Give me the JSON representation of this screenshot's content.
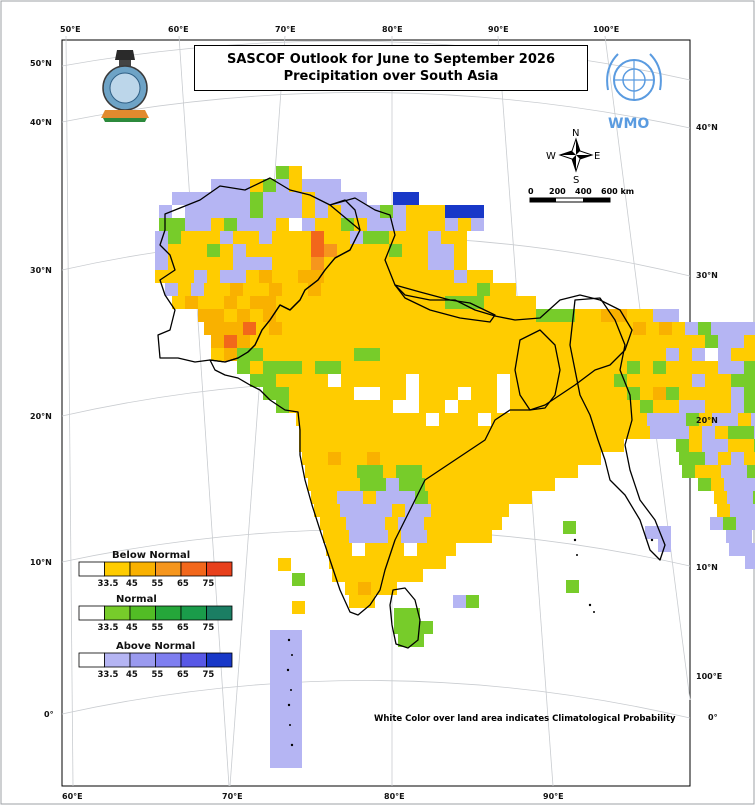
{
  "title": {
    "line1": "SASCOF Outlook for June to September 2026",
    "line2": "Precipitation over South Asia"
  },
  "logos": {
    "left": "india-emblem-logo",
    "right": "wmo-logo",
    "wmo_text": "WMO"
  },
  "footnote": "White Color over land area indicates Climatological Probability",
  "axes": {
    "top": [
      "50°E",
      "60°E",
      "70°E",
      "80°E",
      "90°E",
      "100°E"
    ],
    "bottom": [
      "60°E",
      "70°E",
      "80°E",
      "90°E"
    ],
    "left": [
      "50°N",
      "40°N",
      "30°N",
      "20°N",
      "10°N",
      "0°"
    ],
    "right": [
      "40°N",
      "30°N",
      "20°N",
      "10°N",
      "100°E",
      "0°"
    ]
  },
  "compass": {
    "n": "N",
    "s": "S",
    "e": "E",
    "w": "W"
  },
  "scale_bar": {
    "labels": [
      "0",
      "200",
      "400",
      "600 km"
    ]
  },
  "legend": [
    {
      "title": "Below Normal",
      "values": [
        "33.5",
        "45",
        "55",
        "65",
        "75"
      ],
      "colors": [
        "#ffffff",
        "#ffcc00",
        "#f9b100",
        "#f6961d",
        "#f2671b",
        "#e8401c"
      ]
    },
    {
      "title": "Normal",
      "values": [
        "33.5",
        "45",
        "55",
        "65",
        "75"
      ],
      "colors": [
        "#ffffff",
        "#77cc2a",
        "#52bd25",
        "#25a63a",
        "#1a9c4a",
        "#1b7e63"
      ]
    },
    {
      "title": "Above Normal",
      "values": [
        "33.5",
        "45",
        "55",
        "65",
        "75"
      ],
      "colors": [
        "#ffffff",
        "#b5b5f3",
        "#9a9aef",
        "#7e7ef0",
        "#5858e6",
        "#1838c8"
      ]
    }
  ],
  "colors": {
    "below": "#ffcc00",
    "below_mid": "#f9b100",
    "below_high": "#f6961d",
    "below_vhigh": "#f2671b",
    "normal": "#77cc2a",
    "above": "#b5b5f3",
    "above_high": "#1838c8",
    "clim": "#ffffff"
  }
}
